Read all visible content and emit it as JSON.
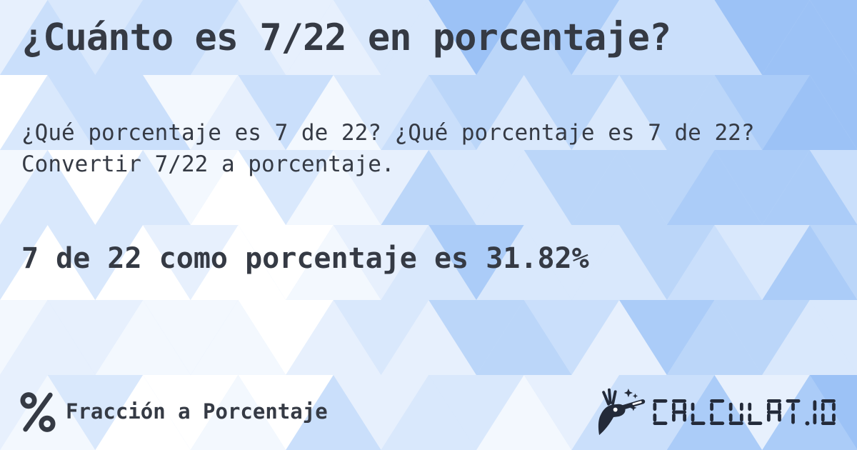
{
  "card": {
    "title": "¿Cuánto es 7/22 en porcentaje?",
    "description": "¿Qué porcentaje es 7 de 22? ¿Qué porcentaje es 7 de 22? Convertir 7/22 a porcentaje.",
    "result": "7 de 22 como porcentaje es 31.82%"
  },
  "footer": {
    "category_icon": "percent-icon",
    "category_label": "Fracción a Porcentaje",
    "logo_icon": "magic-wand-hand-icon",
    "logo_text": "CALCULAT.IO"
  },
  "colors": {
    "text": "#353a44",
    "logo": "#232a39",
    "wand_tip": "#ffffff",
    "bg_palette": [
      "#ffffff",
      "#f3f8fe",
      "#e7f0fd",
      "#d9e8fc",
      "#cadffb",
      "#bbd6f9",
      "#abccf8",
      "#9cc2f6"
    ]
  }
}
